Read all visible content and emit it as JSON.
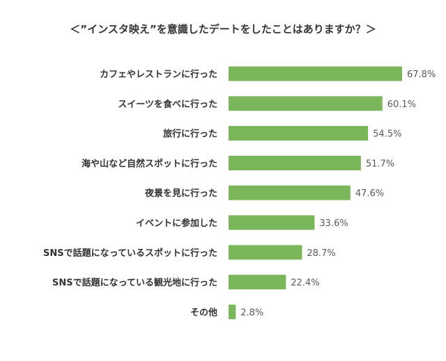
{
  "chart_data": {
    "type": "bar",
    "orientation": "horizontal",
    "title": "＜”インスタ映え”を意識したデートをしたことはありますか？＞",
    "categories": [
      "カフェやレストランに行った",
      "スイーツを食べに行った",
      "旅行に行った",
      "海や山など自然スポットに行った",
      "夜景を見に行った",
      "イベントに参加した",
      "SNSで話題になっているスポットに行った",
      "SNSで話題になっている観光地に行った",
      "その他"
    ],
    "values": [
      67.8,
      60.1,
      54.5,
      51.7,
      47.6,
      33.6,
      28.7,
      22.4,
      2.8
    ],
    "value_labels": [
      "67.8%",
      "60.1%",
      "54.5%",
      "51.7%",
      "47.6%",
      "33.6%",
      "28.7%",
      "22.4%",
      "2.8%"
    ],
    "unit": "%",
    "xlim": [
      0,
      67.8
    ],
    "grid": false,
    "legend": "none",
    "bar_color": "#7cb65a"
  }
}
